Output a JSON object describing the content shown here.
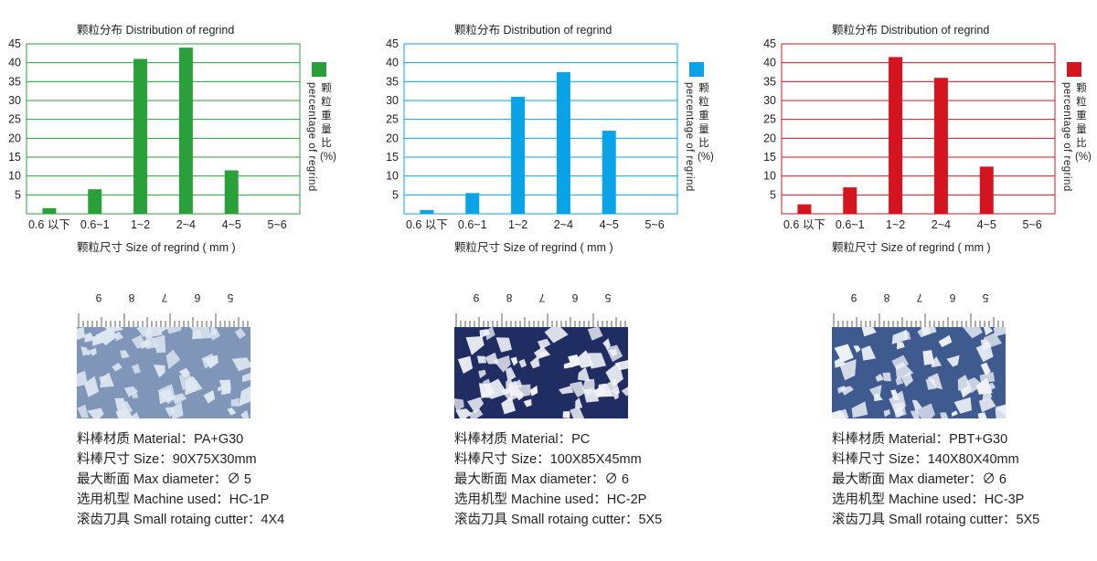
{
  "chart_data": [
    {
      "type": "bar",
      "title": "颗粒分布 Distribution of regrind",
      "xlabel": "颗粒尺寸 Size of regrind ( mm )",
      "ylabel_cn": "颗粒重量比(%)",
      "ylabel_en": "percentage of regrind",
      "categories": [
        "0.6 以下",
        "0.6~1",
        "1~2",
        "2~4",
        "4~5",
        "5~6"
      ],
      "values": [
        1.5,
        6.5,
        41,
        44,
        11.5,
        0
      ],
      "ylim": [
        0,
        45
      ],
      "yticks": [
        5,
        10,
        15,
        20,
        25,
        30,
        35,
        40,
        45
      ],
      "color": "#2aa03a",
      "grid": true,
      "legend": "right"
    },
    {
      "type": "bar",
      "title": "颗粒分布 Distribution of regrind",
      "xlabel": "颗粒尺寸 Size of regrind ( mm )",
      "ylabel_cn": "颗粒重量比(%)",
      "ylabel_en": "percentage of regrind",
      "categories": [
        "0.6 以下",
        "0.6~1",
        "1~2",
        "2~4",
        "4~5",
        "5~6"
      ],
      "values": [
        1,
        5.5,
        31,
        37.5,
        22,
        0
      ],
      "ylim": [
        0,
        45
      ],
      "yticks": [
        5,
        10,
        15,
        20,
        25,
        30,
        35,
        40,
        45
      ],
      "color": "#0aa3e8",
      "grid": true,
      "legend": "right"
    },
    {
      "type": "bar",
      "title": "颗粒分布 Distribution of regrind",
      "xlabel": "颗粒尺寸 Size of regrind ( mm )",
      "ylabel_cn": "颗粒重量比(%)",
      "ylabel_en": "percentage of regrind",
      "categories": [
        "0.6 以下",
        "0.6~1",
        "1~2",
        "2~4",
        "4~5",
        "5~6"
      ],
      "values": [
        2.5,
        7,
        41.5,
        36,
        12.5,
        0
      ],
      "ylim": [
        0,
        45
      ],
      "yticks": [
        5,
        10,
        15,
        20,
        25,
        30,
        35,
        40,
        45
      ],
      "color": "#d4141f",
      "grid": true,
      "legend": "right"
    }
  ],
  "ruler_labels": [
    "9",
    "8",
    "7",
    "6",
    "5"
  ],
  "samples": [
    {
      "material": "料棒材质 Material：PA+G30",
      "size": "料棒尺寸 Size：90X75X30mm",
      "max_diameter": "最大断面 Max diameter：∅ 5",
      "machine": "选用机型 Machine used：HC-1P",
      "cutter": "滚齿刀具 Small rotaing cutter：4X4",
      "bg": "#7f96b8",
      "chip": "#dfe8f2"
    },
    {
      "material": "料棒材质 Material：PC",
      "size": "料棒尺寸 Size：100X85X45mm",
      "max_diameter": "最大断面 Max diameter：∅ 6",
      "machine": "选用机型 Machine used：HC-2P",
      "cutter": "滚齿刀具 Small rotaing cutter：5X5",
      "bg": "#1f2d63",
      "chip": "#f2f4f7"
    },
    {
      "material": "料棒材质 Material：PBT+G30",
      "size": "料棒尺寸 Size：140X80X40mm",
      "max_diameter": "最大断面 Max diameter：∅ 6",
      "machine": "选用机型 Machine used：HC-3P",
      "cutter": "滚齿刀具 Small rotaing cutter：5X5",
      "bg": "#3f5a8e",
      "chip": "#eef2f7"
    }
  ]
}
